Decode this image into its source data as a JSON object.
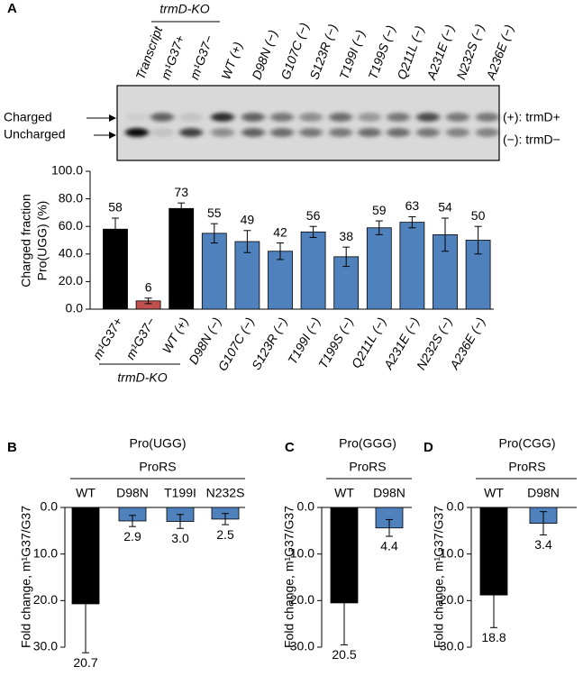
{
  "panel_labels": [
    "A",
    "B",
    "C",
    "D"
  ],
  "gel": {
    "lanes": [
      "Transcript",
      "m¹G37+",
      "m¹G37−",
      "WT (+)",
      "D98N (−)",
      "G107C (−)",
      "S123R (−)",
      "T199I (−)",
      "T199S (−)",
      "Q211L (−)",
      "A231E (−)",
      "N232S (−)",
      "A236E (−)"
    ],
    "group_label": "trmD-KO",
    "left_labels": [
      "Charged",
      "Uncharged"
    ],
    "right_labels": [
      "(+): trmD+",
      "(−): trmD−"
    ]
  },
  "chart_data": [
    {
      "type": "bar",
      "ylabel": [
        "Charged fraction",
        "Pro(UGG) (%)"
      ],
      "categories": [
        "m¹G37+",
        "m¹G37−",
        "WT (+)",
        "D98N (−)",
        "G107C (−)",
        "S123R (−)",
        "T199I (−)",
        "T199S (−)",
        "Q211L (−)",
        "A231E (−)",
        "N232S (−)",
        "A236E (−)"
      ],
      "values": [
        58,
        6,
        73,
        55,
        49,
        42,
        56,
        38,
        59,
        63,
        54,
        50
      ],
      "errors": [
        8,
        2,
        4,
        7,
        8,
        6,
        4,
        7,
        5,
        4,
        12,
        10
      ],
      "colors": [
        "#000000",
        "#c0504d",
        "#000000",
        "#4f81bd",
        "#4f81bd",
        "#4f81bd",
        "#4f81bd",
        "#4f81bd",
        "#4f81bd",
        "#4f81bd",
        "#4f81bd",
        "#4f81bd"
      ],
      "ylim": [
        0,
        100
      ],
      "yticks": [
        {
          "value": 0,
          "label": "0.0"
        },
        {
          "value": 20,
          "label": "20.0"
        },
        {
          "value": 40,
          "label": "40.0"
        },
        {
          "value": 60,
          "label": "60.0"
        },
        {
          "value": 80,
          "label": "80.0"
        },
        {
          "value": 100,
          "label": "100.0"
        }
      ],
      "group_label": "trmD-KO"
    },
    {
      "type": "bar",
      "title": "Pro(UGG)",
      "subtitle": "ProRS",
      "ylabel": [
        "Fold change, m¹G37/G37"
      ],
      "categories": [
        "WT",
        "D98N",
        "T199I",
        "N232S"
      ],
      "values": [
        20.7,
        2.9,
        3.0,
        2.5
      ],
      "value_labels": [
        "20.7",
        "2.9",
        "3.0",
        "2.5"
      ],
      "errors": [
        10.5,
        1.2,
        1.5,
        1.2
      ],
      "colors": [
        "#000000",
        "#4f81bd",
        "#4f81bd",
        "#4f81bd"
      ],
      "ylim": [
        0,
        30
      ],
      "y_inverted": true,
      "yticks": [
        {
          "value": 0,
          "label": "0.0"
        },
        {
          "value": 10,
          "label": "10.0"
        },
        {
          "value": 20,
          "label": "20.0"
        },
        {
          "value": 30,
          "label": "30.0"
        }
      ]
    },
    {
      "type": "bar",
      "title": "Pro(GGG)",
      "subtitle": "ProRS",
      "ylabel": [
        "Fold change, m¹G37/G37"
      ],
      "categories": [
        "WT",
        "D98N"
      ],
      "values": [
        20.5,
        4.4
      ],
      "value_labels": [
        "20.5",
        "4.4"
      ],
      "errors": [
        9,
        1.8
      ],
      "colors": [
        "#000000",
        "#4f81bd"
      ],
      "ylim": [
        0,
        30
      ],
      "y_inverted": true,
      "yticks": [
        {
          "value": 0,
          "label": "0.0"
        },
        {
          "value": 10,
          "label": "10.0"
        },
        {
          "value": 20,
          "label": "20.0"
        },
        {
          "value": 30,
          "label": "30.0"
        }
      ]
    },
    {
      "type": "bar",
      "title": "Pro(CGG)",
      "subtitle": "ProRS",
      "ylabel": [
        "Fold change, m¹G37/G37"
      ],
      "categories": [
        "WT",
        "D98N"
      ],
      "values": [
        18.8,
        3.4
      ],
      "value_labels": [
        "18.8",
        "3.4"
      ],
      "errors": [
        7,
        2.5
      ],
      "colors": [
        "#000000",
        "#4f81bd"
      ],
      "ylim": [
        0,
        30
      ],
      "y_inverted": true,
      "yticks": [
        {
          "value": 0,
          "label": "0.0"
        },
        {
          "value": 10,
          "label": "10.0"
        },
        {
          "value": 20,
          "label": "20.0"
        },
        {
          "value": 30,
          "label": "30.0"
        }
      ]
    }
  ]
}
